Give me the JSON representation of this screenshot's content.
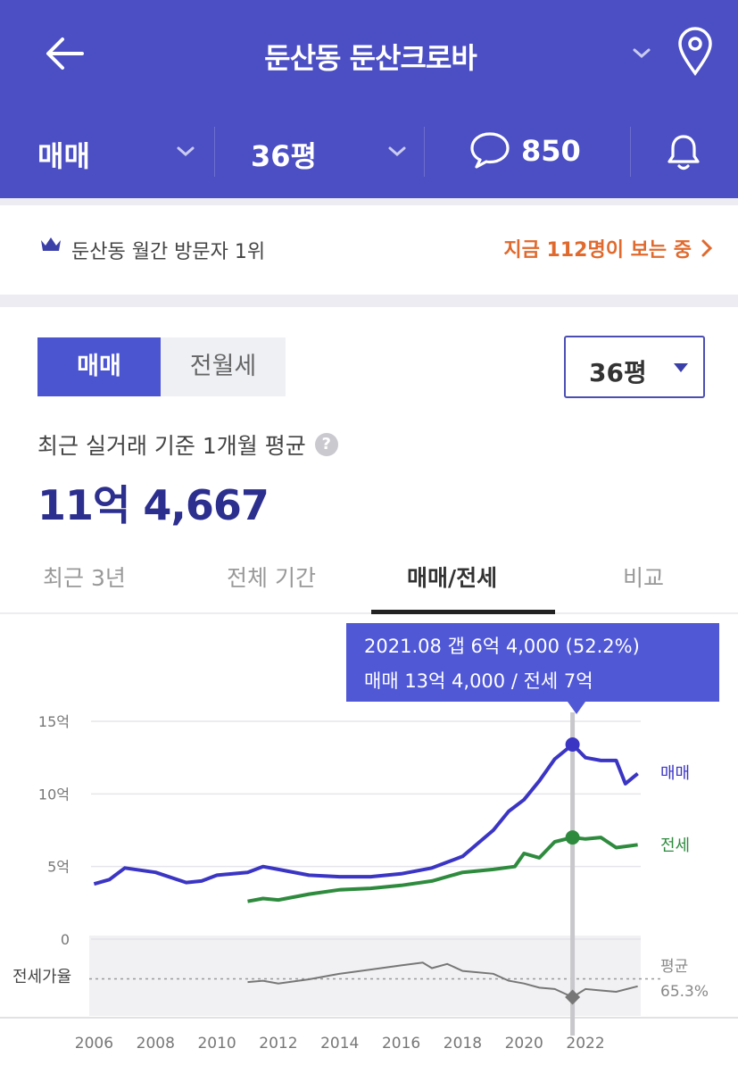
{
  "header": {
    "title": "둔산동 둔산크로바",
    "deal_type": "매매",
    "size": "36평",
    "comment_count": "850"
  },
  "rank_bar": {
    "rank_text": "둔산동 월간 방문자 1위",
    "live_text": "지금 112명이 보는 중"
  },
  "price_panel": {
    "toggle": [
      "매매",
      "전월세"
    ],
    "selected_toggle": "매매",
    "size_select": "36평",
    "caption": "최근 실거래 기준 1개월 평균",
    "help_glyph": "?",
    "value": "11억 4,667"
  },
  "tabs": [
    "최근 3년",
    "전체 기간",
    "매매/전세",
    "비교"
  ],
  "active_tab": "매매/전세",
  "tooltip": {
    "line1": "2021.08  갭 6억 4,000 (52.2%)",
    "line2": "매매 13억 4,000 / 전세 7억"
  },
  "colors": {
    "header_bg": "#4c4fc4",
    "accent": "#4c55d0",
    "price_text": "#2d2f8f",
    "live_link": "#e06a2e",
    "sale_series": "#3b35c4",
    "jeonse_series": "#2e8b3e",
    "ratio_series": "#777777"
  },
  "icons": [
    "back-arrow-icon",
    "chevron-down-icon",
    "location-pin-icon",
    "comment-bubble-icon",
    "bell-icon",
    "crown-icon",
    "chevron-right-icon",
    "caret-down-icon",
    "help-icon"
  ],
  "chart_data": {
    "type": "line",
    "x_ticks": [
      "2006",
      "2008",
      "2010",
      "2012",
      "2014",
      "2016",
      "2018",
      "2020",
      "2022"
    ],
    "y_ticks": [
      "15억",
      "10억",
      "5억",
      "0"
    ],
    "ylim": [
      0,
      15
    ],
    "y_unit": "억",
    "series": [
      {
        "name": "매매",
        "x": [
          2006.0,
          2006.5,
          2007.0,
          2008.0,
          2009.0,
          2009.5,
          2010.0,
          2011.0,
          2011.5,
          2012.0,
          2013.0,
          2014.0,
          2015.0,
          2016.0,
          2017.0,
          2017.5,
          2018.0,
          2018.5,
          2019.0,
          2019.5,
          2020.0,
          2020.5,
          2021.0,
          2021.58,
          2022.0,
          2022.5,
          2023.0,
          2023.3,
          2023.7
        ],
        "y": [
          3.8,
          4.1,
          4.9,
          4.6,
          3.9,
          4.0,
          4.4,
          4.6,
          5.0,
          4.8,
          4.4,
          4.3,
          4.3,
          4.5,
          4.9,
          5.3,
          5.7,
          6.6,
          7.5,
          8.8,
          9.6,
          10.9,
          12.4,
          13.4,
          12.5,
          12.3,
          12.3,
          10.7,
          11.4
        ]
      },
      {
        "name": "전세",
        "x": [
          2011.0,
          2011.5,
          2012.0,
          2013.0,
          2014.0,
          2015.0,
          2016.0,
          2017.0,
          2018.0,
          2019.0,
          2019.7,
          2020.0,
          2020.5,
          2021.0,
          2021.58,
          2022.0,
          2022.5,
          2023.0,
          2023.7
        ],
        "y": [
          2.6,
          2.8,
          2.7,
          3.1,
          3.4,
          3.5,
          3.7,
          4.0,
          4.6,
          4.8,
          5.0,
          5.9,
          5.6,
          6.7,
          7.0,
          6.9,
          7.0,
          6.3,
          6.5
        ]
      },
      {
        "name": "전세가율",
        "x": [
          2011.0,
          2011.5,
          2012.0,
          2013.0,
          2014.0,
          2015.0,
          2016.0,
          2016.7,
          2017.0,
          2017.5,
          2018.0,
          2019.0,
          2019.5,
          2020.0,
          2020.5,
          2021.0,
          2021.58,
          2022.0,
          2022.5,
          2023.0,
          2023.7
        ],
        "y": [
          63,
          64,
          62,
          65,
          69,
          72,
          75,
          77,
          73,
          76,
          71,
          69,
          64,
          62,
          59,
          58,
          52.2,
          58,
          57,
          56,
          60
        ]
      }
    ],
    "series_labels": [
      "매매",
      "전세"
    ],
    "ratio_axis_label": "전세가율",
    "ratio_avg_label": "평균",
    "ratio_avg_value": "65.3%",
    "ratio_avg": 65.3,
    "highlight": {
      "x": 2021.58,
      "sale": 13.4,
      "jeonse": 7.0,
      "ratio": 52.2
    }
  }
}
